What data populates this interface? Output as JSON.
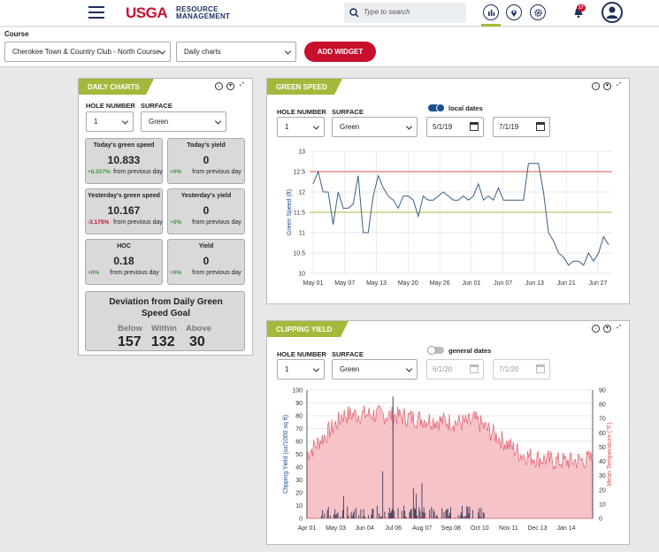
{
  "header": {
    "logo": "USGA",
    "logo_sub_1": "RESOURCE",
    "logo_sub_2": "MANAGEMENT",
    "search_placeholder": "Type to search",
    "notification_count": "17",
    "icons": [
      "menu-icon",
      "search-icon",
      "chart-icon",
      "map-pin-icon",
      "gear-icon",
      "bell-icon",
      "user-icon"
    ]
  },
  "filters": {
    "course_label": "Course",
    "course_value": "Cherokee Town & Country Club - North Course",
    "view_value": "Daily charts",
    "add_widget_label": "ADD WIDGET"
  },
  "daily_charts": {
    "title": "DAILY CHARTS",
    "hole_label": "HOLE NUMBER",
    "hole_value": "1",
    "surface_label": "SURFACE",
    "surface_value": "Green",
    "stats": [
      {
        "heading": "Today's green speed",
        "value": "10.833",
        "change": "+8.557%",
        "change_color": "#3a9b3a",
        "footer": "from previous day"
      },
      {
        "heading": "Today's yield",
        "value": "0",
        "change": "+0%",
        "change_color": "#3a9b3a",
        "footer": "from previous day"
      },
      {
        "heading": "Yesterday's green speed",
        "value": "10.167",
        "change": "-3.175%",
        "change_color": "#c8102e",
        "footer": "from previous day"
      },
      {
        "heading": "Yesterday's yield",
        "value": "0",
        "change": "+0%",
        "change_color": "#3a9b3a",
        "footer": "from previous day"
      },
      {
        "heading": "HOC",
        "value": "0.18",
        "change": "+0%",
        "change_color": "#3a9b3a",
        "footer": "from previous day"
      },
      {
        "heading": "Yield",
        "value": "0",
        "change": "+0%",
        "change_color": "#3a9b3a",
        "footer": "from previous day"
      }
    ],
    "deviation": {
      "title": "Deviation from Daily Green Speed Goal",
      "below_label": "Below",
      "within_label": "Within",
      "above_label": "Above",
      "below": "157",
      "within": "132",
      "above": "30"
    }
  },
  "green_speed": {
    "title": "GREEN SPEED",
    "hole_label": "HOLE NUMBER",
    "hole_value": "1",
    "surface_label": "SURFACE",
    "surface_value": "Green",
    "toggle_label": "local dates",
    "toggle_on": true,
    "start_date": "5/1/19",
    "end_date": "7/1/19",
    "accent": "#1f4e8c"
  },
  "clipping_yield": {
    "title": "CLIPPING YIELD",
    "hole_label": "HOLE NUMBER",
    "hole_value": "1",
    "surface_label": "SURFACE",
    "surface_value": "Green",
    "toggle_label": "general dates",
    "toggle_on": false,
    "start_date": "6/1/20",
    "end_date": "7/1/20"
  },
  "chart_data": [
    {
      "type": "line",
      "ylabel": "Green Speed (ft)",
      "ylim": [
        10,
        13
      ],
      "yticks": [
        "10",
        "10.5",
        "11",
        "11.5",
        "12",
        "12.5",
        "13"
      ],
      "xticks": [
        "May 01",
        "May 07",
        "May 13",
        "May 20",
        "May 26",
        "Jun 01",
        "Jun 07",
        "Jun 13",
        "Jun 21",
        "Jun 27"
      ],
      "grid": true,
      "reference_lines": [
        {
          "value": 12.5,
          "color": "#d9534f"
        },
        {
          "value": 11.5,
          "color": "#a4b93b"
        }
      ],
      "series": [
        {
          "color": "#3b5f86",
          "values": [
            12.2,
            12.5,
            12.0,
            12.0,
            11.2,
            12.0,
            11.6,
            11.6,
            11.7,
            12.4,
            11.0,
            11.0,
            11.9,
            12.4,
            12.1,
            11.9,
            11.8,
            11.6,
            11.9,
            11.9,
            11.8,
            11.4,
            11.9,
            11.8,
            11.8,
            11.9,
            12.0,
            11.9,
            11.8,
            11.8,
            11.9,
            11.8,
            11.9,
            12.2,
            11.8,
            11.9,
            11.8,
            12.1,
            11.8,
            11.8,
            11.8,
            11.8,
            11.8,
            12.7,
            12.7,
            12.7,
            12.0,
            11.0,
            10.8,
            10.5,
            10.4,
            10.2,
            10.3,
            10.3,
            10.2,
            10.5,
            10.3,
            10.5,
            10.9,
            10.7
          ]
        }
      ]
    },
    {
      "type": "bar",
      "ylabel": "Clipping Yield (oz/1000 sq ft)",
      "y2label": "Mean Temperature (°F)",
      "ylim": [
        0,
        100
      ],
      "y2lim": [
        0,
        90
      ],
      "yticks": [
        "0",
        "10",
        "20",
        "30",
        "40",
        "50",
        "60",
        "70",
        "80",
        "90",
        "100"
      ],
      "y2ticks": [
        "0",
        "10",
        "20",
        "30",
        "40",
        "50",
        "60",
        "70",
        "80",
        "90"
      ],
      "xticks": [
        "Apr 01",
        "May 03",
        "Jun 04",
        "Jul 06",
        "Aug 07",
        "Sep 08",
        "Oct 10",
        "Nov 11",
        "Dec 13",
        "Jan 14"
      ],
      "grid": true
    }
  ]
}
